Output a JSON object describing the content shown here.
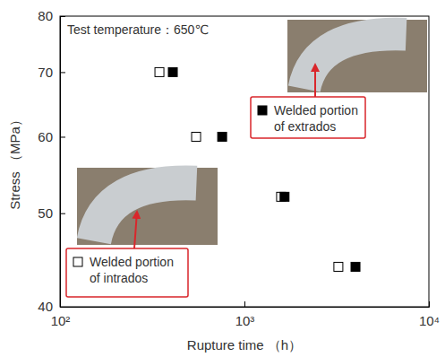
{
  "chart_data": {
    "type": "scatter",
    "title": "Test temperature：650℃",
    "x_label": "Rupture time （h）",
    "y_label": "Stress （MPa）",
    "log": true,
    "xlim": [
      100,
      10000
    ],
    "ylim": [
      40,
      80
    ],
    "xticks": [
      {
        "value": 100,
        "label": "10²"
      },
      {
        "value": 1000,
        "label": "10³"
      },
      {
        "value": 10000,
        "label": "10⁴"
      }
    ],
    "yticks": [
      40,
      50,
      60,
      70,
      80
    ],
    "series": [
      {
        "name": "Welded portion of intrados",
        "color": "#000000",
        "marker": "square-open",
        "x": [
          346,
          547,
          1580,
          3230
        ],
        "values": [
          70,
          60,
          52,
          44
        ]
      },
      {
        "name": "Welded portion of extrados",
        "color": "#000000",
        "marker": "square",
        "x": [
          409,
          757,
          1650,
          4000
        ],
        "values": [
          70,
          60,
          52,
          44
        ]
      }
    ]
  }
}
